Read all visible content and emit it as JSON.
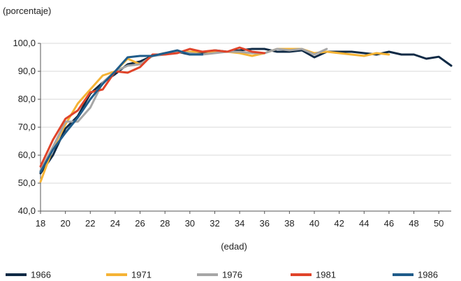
{
  "chart_data": {
    "type": "line",
    "ylabel": "(porcentaje)",
    "xlabel": "(edad)",
    "xlim": [
      18,
      51
    ],
    "ylim": [
      40,
      100
    ],
    "x_ticks": [
      18,
      20,
      22,
      24,
      26,
      28,
      30,
      32,
      34,
      36,
      38,
      40,
      42,
      44,
      46,
      48,
      50
    ],
    "y_ticks": [
      40,
      50,
      60,
      70,
      80,
      90,
      100
    ],
    "x_tick_labels": [
      "18",
      "20",
      "22",
      "24",
      "26",
      "28",
      "30",
      "32",
      "34",
      "36",
      "38",
      "40",
      "42",
      "44",
      "46",
      "48",
      "50"
    ],
    "y_tick_labels": [
      "40,0",
      "50,0",
      "60,0",
      "70,0",
      "80,0",
      "90,0",
      "100,0"
    ],
    "legend_position": "bottom",
    "series": [
      {
        "name": "1966",
        "color": "#0f2a45",
        "x": [
          18,
          19,
          20,
          21,
          22,
          23,
          24,
          25,
          26,
          27,
          28,
          29,
          30,
          31,
          32,
          33,
          34,
          35,
          36,
          37,
          38,
          39,
          40,
          41,
          42,
          43,
          44,
          45,
          46,
          47,
          48,
          49,
          50,
          51
        ],
        "values": [
          53.5,
          60.0,
          69.5,
          74.0,
          82.0,
          86.0,
          89.0,
          92.5,
          93.5,
          95.5,
          96.5,
          97.0,
          96.0,
          96.5,
          97.5,
          97.0,
          97.5,
          98.0,
          98.0,
          97.0,
          97.0,
          97.5,
          95.0,
          97.0,
          97.0,
          97.0,
          96.5,
          96.0,
          97.0,
          96.0,
          96.0,
          94.5,
          95.2,
          92.0
        ]
      },
      {
        "name": "1971",
        "color": "#f5b335",
        "x": [
          18,
          19,
          20,
          21,
          22,
          23,
          24,
          25,
          26,
          27,
          28,
          29,
          30,
          31,
          32,
          33,
          34,
          35,
          36,
          37,
          38,
          39,
          40,
          41,
          42,
          43,
          44,
          45,
          46
        ],
        "values": [
          50.5,
          62.5,
          71.0,
          78.5,
          83.5,
          88.5,
          90.0,
          94.5,
          92.5,
          95.5,
          96.5,
          97.0,
          97.0,
          97.0,
          97.0,
          97.0,
          96.5,
          95.5,
          96.5,
          98.0,
          98.0,
          98.0,
          96.5,
          97.0,
          96.5,
          96.0,
          95.5,
          96.5,
          96.0
        ]
      },
      {
        "name": "1976",
        "color": "#a6a6a6",
        "x": [
          18,
          19,
          20,
          21,
          22,
          23,
          24,
          25,
          26,
          27,
          28,
          29,
          30,
          31,
          32,
          33,
          34,
          35,
          36,
          37,
          38,
          39,
          40,
          41
        ],
        "values": [
          54.5,
          63.0,
          72.0,
          72.0,
          77.0,
          86.0,
          90.0,
          92.0,
          92.5,
          95.5,
          96.0,
          97.0,
          96.5,
          96.0,
          96.5,
          97.0,
          97.0,
          96.5,
          96.5,
          98.0,
          97.5,
          98.0,
          96.0,
          98.0
        ]
      },
      {
        "name": "1981",
        "color": "#e0442a",
        "x": [
          18,
          19,
          20,
          21,
          22,
          23,
          24,
          25,
          26,
          27,
          28,
          29,
          30,
          31,
          32,
          33,
          34,
          35,
          36
        ],
        "values": [
          56.0,
          65.5,
          73.0,
          76.0,
          82.5,
          83.5,
          90.0,
          89.5,
          91.5,
          96.0,
          96.0,
          96.5,
          98.0,
          97.0,
          97.5,
          97.0,
          98.5,
          97.0,
          96.5
        ]
      },
      {
        "name": "1986",
        "color": "#1f5c8a",
        "x": [
          18,
          19,
          20,
          21,
          22,
          23,
          24,
          25,
          26,
          27,
          28,
          29,
          30,
          31
        ],
        "values": [
          54.0,
          62.0,
          68.0,
          73.5,
          80.0,
          85.5,
          90.0,
          95.0,
          95.5,
          95.5,
          96.5,
          97.5,
          96.0,
          96.0
        ]
      }
    ]
  }
}
